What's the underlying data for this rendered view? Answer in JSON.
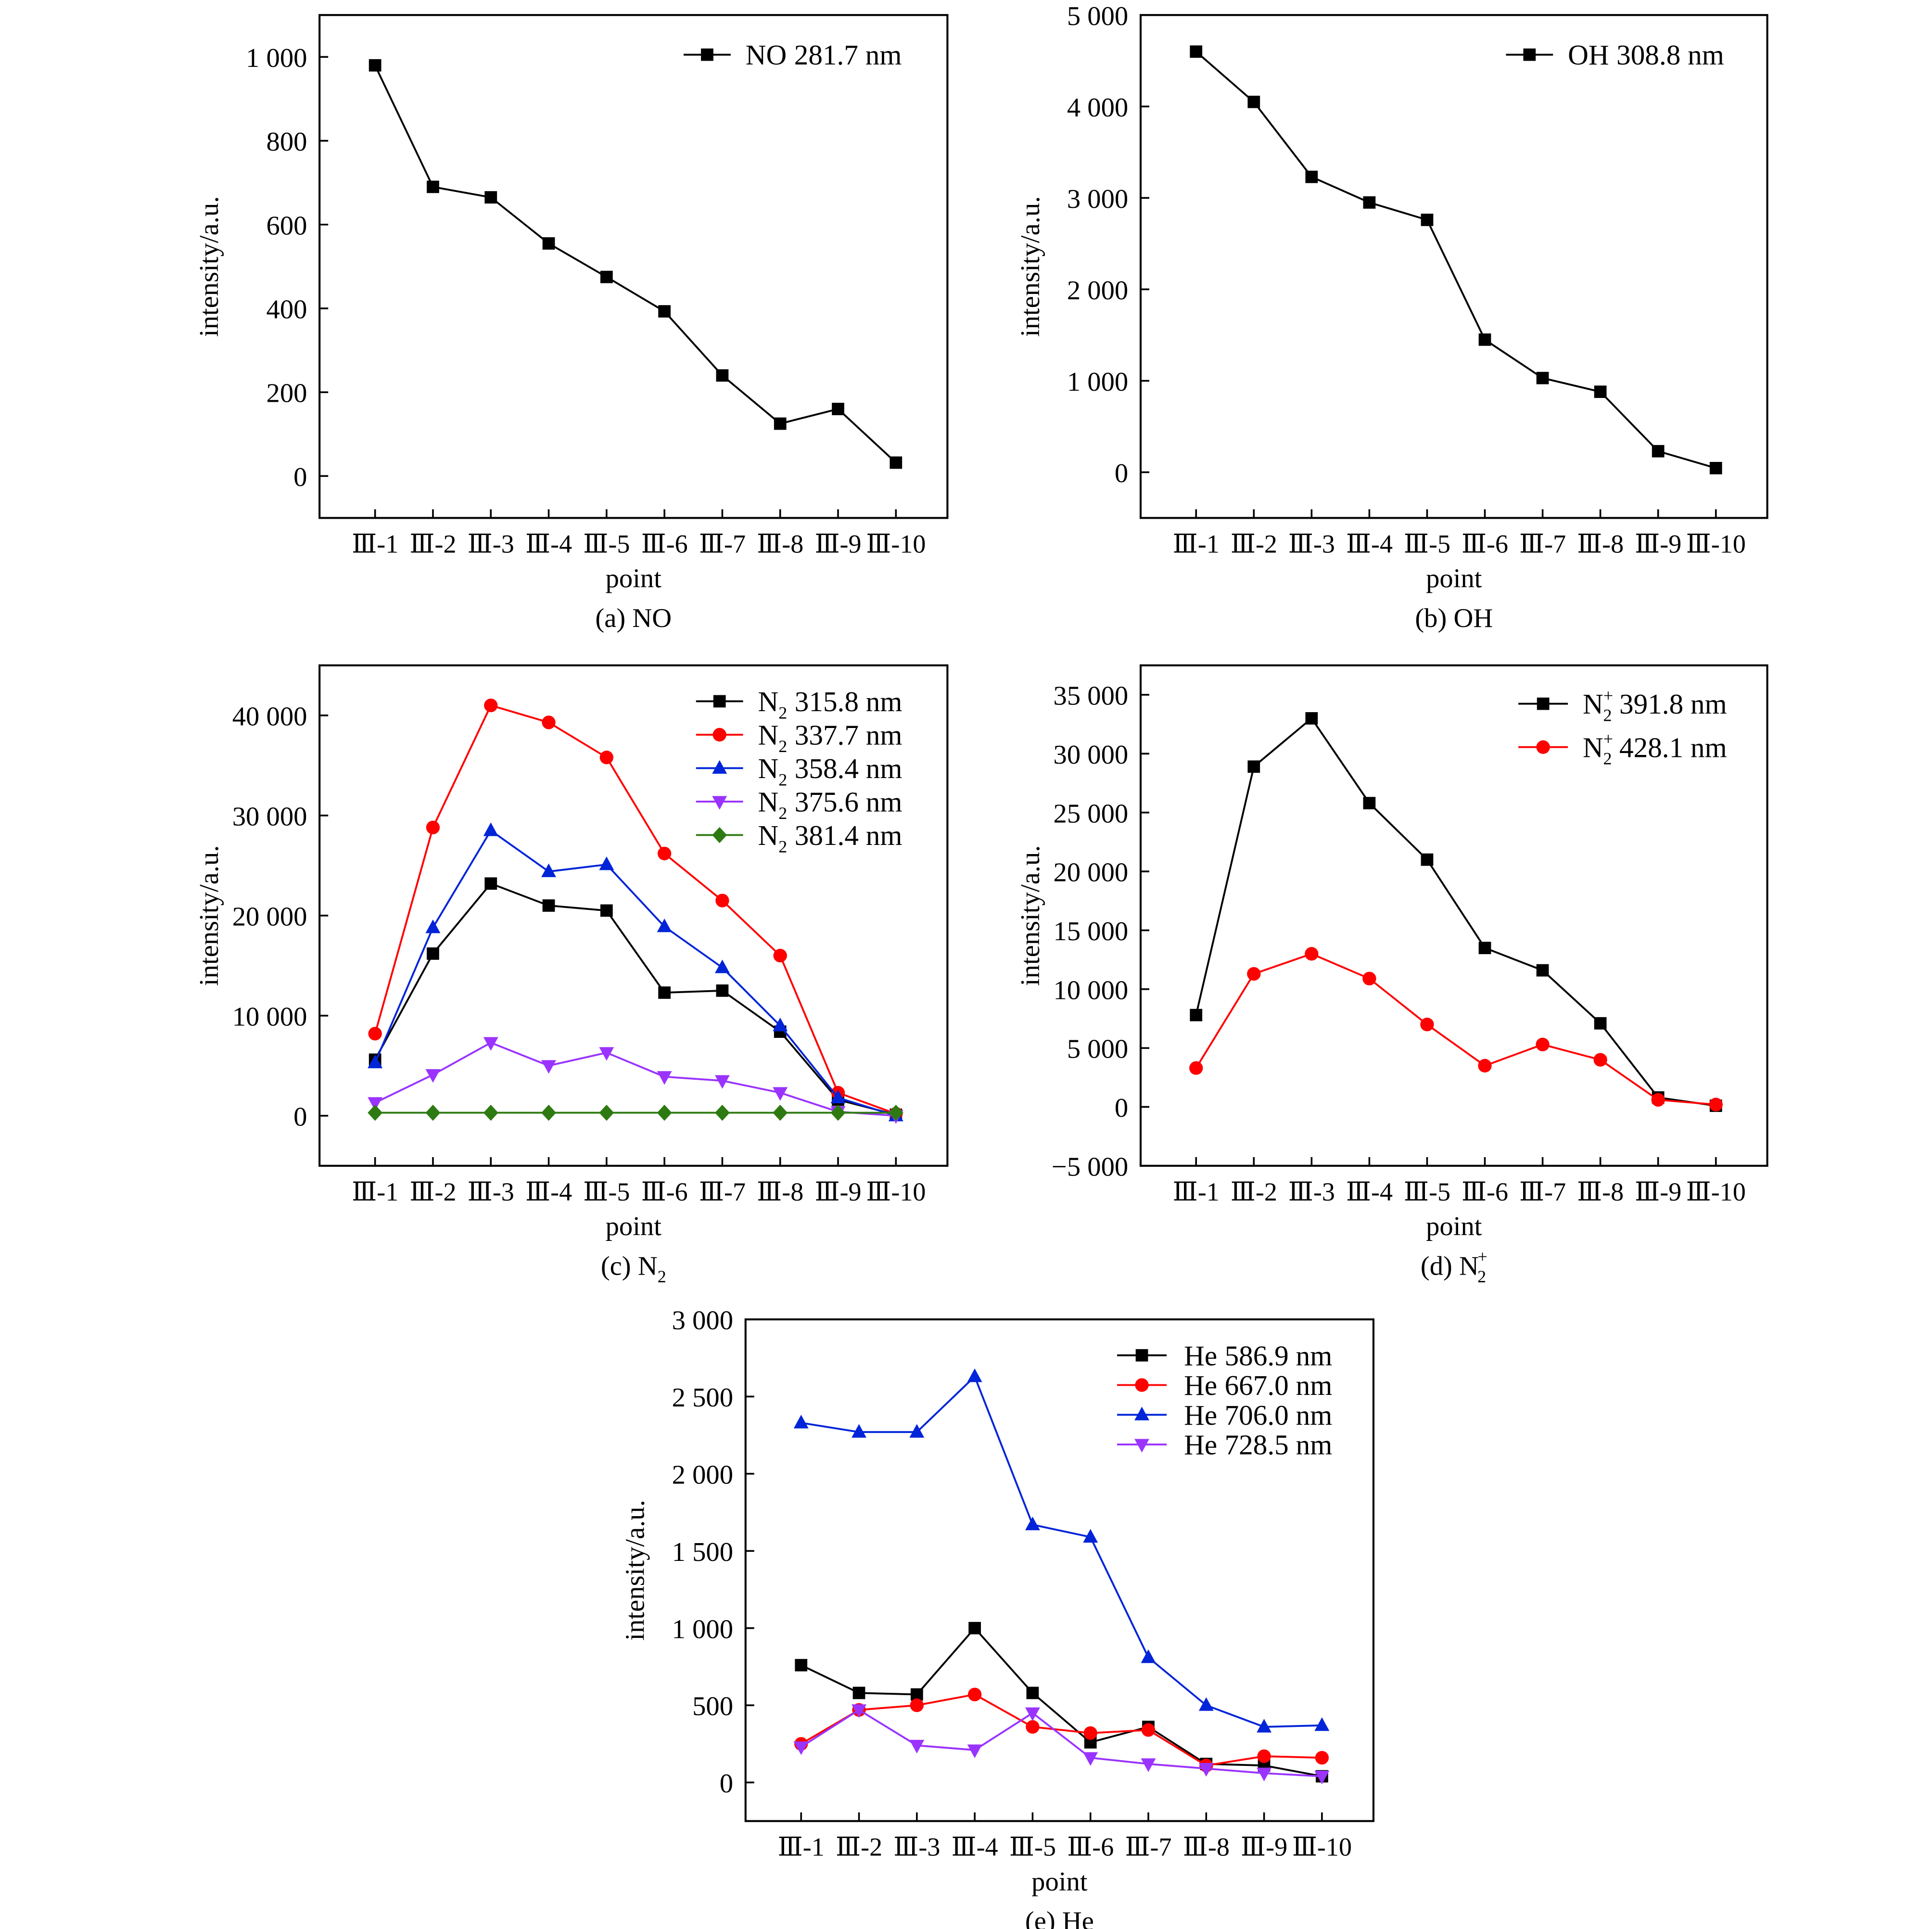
{
  "chart_data": [
    {
      "id": "a",
      "type": "line",
      "caption": {
        "text": "(a) NO",
        "sub": "",
        "sup": ""
      },
      "xlabel": "point",
      "ylabel": "intensity/a.u.",
      "categories": [
        "Ⅲ-1",
        "Ⅲ-2",
        "Ⅲ-3",
        "Ⅲ-4",
        "Ⅲ-5",
        "Ⅲ-6",
        "Ⅲ-7",
        "Ⅲ-8",
        "Ⅲ-9",
        "Ⅲ-10"
      ],
      "ylim": [
        -100,
        1100
      ],
      "yticks": [
        0,
        200,
        400,
        600,
        800,
        1000
      ],
      "ytick_labels": [
        "0",
        "200",
        "400",
        "600",
        "800",
        "1 000"
      ],
      "grid": false,
      "legend": "top-right",
      "series": [
        {
          "species": "NO",
          "sub": "",
          "sup": "",
          "label": "281.7 nm",
          "color": "#000000",
          "marker": "square",
          "values": [
            980,
            690,
            665,
            555,
            475,
            393,
            240,
            125,
            160,
            32
          ]
        }
      ]
    },
    {
      "id": "b",
      "type": "line",
      "caption": {
        "text": "(b) OH",
        "sub": "",
        "sup": ""
      },
      "xlabel": "point",
      "ylabel": "intensity/a.u.",
      "categories": [
        "Ⅲ-1",
        "Ⅲ-2",
        "Ⅲ-3",
        "Ⅲ-4",
        "Ⅲ-5",
        "Ⅲ-6",
        "Ⅲ-7",
        "Ⅲ-8",
        "Ⅲ-9",
        "Ⅲ-10"
      ],
      "ylim": [
        -500,
        5000
      ],
      "yticks": [
        0,
        1000,
        2000,
        3000,
        4000,
        5000
      ],
      "ytick_labels": [
        "0",
        "1 000",
        "2 000",
        "3 000",
        "4 000",
        "5 000"
      ],
      "grid": false,
      "legend": "top-right",
      "series": [
        {
          "species": "OH",
          "sub": "",
          "sup": "",
          "label": "308.8 nm",
          "color": "#000000",
          "marker": "square",
          "values": [
            4600,
            4050,
            3230,
            2950,
            2760,
            1450,
            1030,
            880,
            230,
            45
          ]
        }
      ]
    },
    {
      "id": "c",
      "type": "line",
      "caption": {
        "text": "(c) N",
        "sub": "2",
        "sup": ""
      },
      "xlabel": "point",
      "ylabel": "intensity/a.u.",
      "categories": [
        "Ⅲ-1",
        "Ⅲ-2",
        "Ⅲ-3",
        "Ⅲ-4",
        "Ⅲ-5",
        "Ⅲ-6",
        "Ⅲ-7",
        "Ⅲ-8",
        "Ⅲ-9",
        "Ⅲ-10"
      ],
      "ylim": [
        -5000,
        45000
      ],
      "yticks": [
        0,
        10000,
        20000,
        30000,
        40000
      ],
      "ytick_labels": [
        "0",
        "10 000",
        "20 000",
        "30 000",
        "40 000"
      ],
      "grid": false,
      "legend": "top-right",
      "series": [
        {
          "species": "N",
          "sub": "2",
          "sup": "",
          "label": "315.8 nm",
          "color": "#000000",
          "marker": "square",
          "values": [
            5600,
            16200,
            23200,
            21000,
            20500,
            12300,
            12500,
            8400,
            1600,
            100
          ]
        },
        {
          "species": "N",
          "sub": "2",
          "sup": "",
          "label": "337.7 nm",
          "color": "#ff0000",
          "marker": "circle",
          "values": [
            8200,
            28800,
            41000,
            39300,
            35800,
            26200,
            21500,
            16000,
            2300,
            200
          ]
        },
        {
          "species": "N",
          "sub": "2",
          "sup": "",
          "label": "358.4 nm",
          "color": "#0024d8",
          "marker": "triangle-up",
          "values": [
            5300,
            18800,
            28500,
            24400,
            25100,
            18900,
            14800,
            9000,
            1800,
            0
          ]
        },
        {
          "species": "N",
          "sub": "2",
          "sup": "",
          "label": "375.6 nm",
          "color": "#9a33ff",
          "marker": "triangle-down",
          "values": [
            1300,
            4100,
            7300,
            5000,
            6300,
            3900,
            3500,
            2300,
            400,
            0
          ]
        },
        {
          "species": "N",
          "sub": "2",
          "sup": "",
          "label": "381.4 nm",
          "color": "#2e7a12",
          "marker": "diamond",
          "values": [
            300,
            300,
            300,
            300,
            300,
            300,
            300,
            300,
            300,
            300
          ]
        }
      ]
    },
    {
      "id": "d",
      "type": "line",
      "caption": {
        "text": "(d) N",
        "sub": "2",
        "sup": "+"
      },
      "xlabel": "point",
      "ylabel": "intensity/a.u.",
      "categories": [
        "Ⅲ-1",
        "Ⅲ-2",
        "Ⅲ-3",
        "Ⅲ-4",
        "Ⅲ-5",
        "Ⅲ-6",
        "Ⅲ-7",
        "Ⅲ-8",
        "Ⅲ-9",
        "Ⅲ-10"
      ],
      "ylim": [
        -5000,
        37500
      ],
      "yticks": [
        -5000,
        0,
        5000,
        10000,
        15000,
        20000,
        25000,
        30000,
        35000
      ],
      "ytick_labels": [
        "−5 000",
        "0",
        "5 000",
        "10 000",
        "15 000",
        "20 000",
        "25 000",
        "30 000",
        "35 000"
      ],
      "grid": false,
      "legend": "top-right",
      "series": [
        {
          "species": "N",
          "sub": "2",
          "sup": "+",
          "label": "391.8 nm",
          "color": "#000000",
          "marker": "square",
          "values": [
            7800,
            28900,
            33000,
            25800,
            21000,
            13500,
            11600,
            7100,
            800,
            100
          ]
        },
        {
          "species": "N",
          "sub": "2",
          "sup": "+",
          "label": "428.1 nm",
          "color": "#ff0000",
          "marker": "circle",
          "values": [
            3300,
            11300,
            13000,
            10900,
            7000,
            3500,
            5300,
            4000,
            600,
            200
          ]
        }
      ]
    },
    {
      "id": "e",
      "type": "line",
      "caption": {
        "text": "(e) He",
        "sub": "",
        "sup": ""
      },
      "xlabel": "point",
      "ylabel": "intensity/a.u.",
      "categories": [
        "Ⅲ-1",
        "Ⅲ-2",
        "Ⅲ-3",
        "Ⅲ-4",
        "Ⅲ-5",
        "Ⅲ-6",
        "Ⅲ-7",
        "Ⅲ-8",
        "Ⅲ-9",
        "Ⅲ-10"
      ],
      "ylim": [
        -250,
        3000
      ],
      "yticks": [
        0,
        500,
        1000,
        1500,
        2000,
        2500,
        3000
      ],
      "ytick_labels": [
        "0",
        "500",
        "1 000",
        "1 500",
        "2 000",
        "2 500",
        "3 000"
      ],
      "grid": false,
      "legend": "top-right",
      "series": [
        {
          "species": "He",
          "sub": "",
          "sup": "",
          "label": "586.9 nm",
          "color": "#000000",
          "marker": "square",
          "values": [
            760,
            580,
            570,
            1000,
            580,
            260,
            360,
            120,
            110,
            40
          ]
        },
        {
          "species": "He",
          "sub": "",
          "sup": "",
          "label": "667.0 nm",
          "color": "#ff0000",
          "marker": "circle",
          "values": [
            250,
            470,
            500,
            570,
            360,
            320,
            340,
            110,
            170,
            160
          ]
        },
        {
          "species": "He",
          "sub": "",
          "sup": "",
          "label": "706.0 nm",
          "color": "#0024d8",
          "marker": "triangle-up",
          "values": [
            2330,
            2270,
            2270,
            2630,
            1670,
            1590,
            810,
            500,
            360,
            370
          ]
        },
        {
          "species": "He",
          "sub": "",
          "sup": "",
          "label": "728.5 nm",
          "color": "#9a33ff",
          "marker": "triangle-down",
          "values": [
            230,
            470,
            240,
            210,
            450,
            160,
            120,
            90,
            60,
            40
          ]
        }
      ]
    }
  ]
}
